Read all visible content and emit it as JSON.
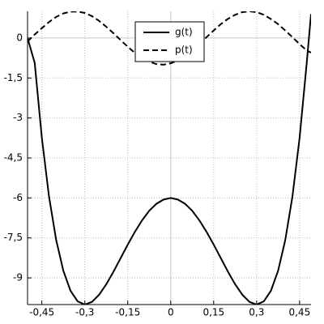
{
  "chart_data": {
    "type": "line",
    "x": [
      -0.5,
      -0.475,
      -0.45,
      -0.425,
      -0.4,
      -0.375,
      -0.35,
      -0.325,
      -0.3,
      -0.275,
      -0.25,
      -0.225,
      -0.2,
      -0.175,
      -0.15,
      -0.125,
      -0.1,
      -0.075,
      -0.05,
      -0.025,
      0,
      0.025,
      0.05,
      0.075,
      0.1,
      0.125,
      0.15,
      0.175,
      0.2,
      0.225,
      0.25,
      0.275,
      0.3,
      0.325,
      0.35,
      0.375,
      0.4,
      0.425,
      0.45,
      0.475,
      0.49
    ],
    "series": [
      {
        "name": "g(t)",
        "color": "#000000",
        "line_style": "solid",
        "values": [
          0,
          -0.93,
          -3.75,
          -5.95,
          -7.58,
          -8.73,
          -9.48,
          -9.88,
          -10,
          -9.9,
          -9.63,
          -9.24,
          -8.77,
          -8.26,
          -7.75,
          -7.27,
          -6.84,
          -6.48,
          -6.22,
          -6.06,
          -6,
          -6.06,
          -6.22,
          -6.48,
          -6.84,
          -7.27,
          -7.75,
          -8.26,
          -8.77,
          -9.24,
          -9.63,
          -9.9,
          -10,
          -9.88,
          -9.48,
          -8.73,
          -7.58,
          -5.95,
          -3.75,
          -0.93,
          0.9
        ]
      },
      {
        "name": "p(t)",
        "color": "#000000",
        "line_style": "dashed",
        "values": [
          -0.13,
          0.13,
          0.37,
          0.6,
          0.79,
          0.92,
          0.99,
          0.99,
          0.94,
          0.82,
          0.64,
          0.42,
          0.18,
          -0.08,
          -0.33,
          -0.56,
          -0.75,
          -0.89,
          -0.98,
          -1,
          -0.95,
          -0.84,
          -0.68,
          -0.47,
          -0.23,
          0.03,
          0.28,
          0.52,
          0.72,
          0.87,
          0.97,
          1,
          0.97,
          0.87,
          0.71,
          0.52,
          0.28,
          0.03,
          -0.23,
          -0.47,
          -0.55
        ]
      }
    ],
    "xlim": [
      -0.5,
      0.49
    ],
    "ylim": [
      -10,
      1
    ],
    "xticks": [
      {
        "value": -0.45,
        "label": "-0,45"
      },
      {
        "value": -0.3,
        "label": "-0,3"
      },
      {
        "value": -0.15,
        "label": "-0,15"
      },
      0,
      {
        "value": 0.15,
        "label": "0,15"
      },
      {
        "value": 0.3,
        "label": "0,3"
      },
      {
        "value": 0.45,
        "label": "0,45"
      }
    ],
    "yticks": [
      0,
      {
        "value": -1.5,
        "label": "-1,5"
      },
      {
        "value": -3,
        "label": "-3"
      },
      {
        "value": -4.5,
        "label": "-4,5"
      },
      {
        "value": -6,
        "label": "-6"
      },
      {
        "value": -7.5,
        "label": "-7,5"
      },
      {
        "value": -9,
        "label": "-9"
      }
    ],
    "grid": true,
    "legend": "top-center"
  }
}
